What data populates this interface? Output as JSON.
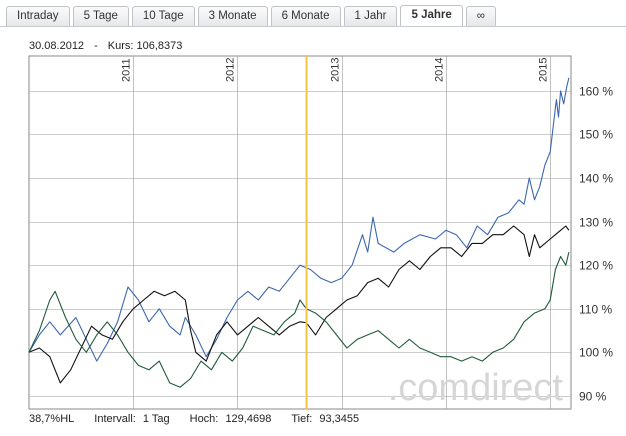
{
  "tabs": [
    {
      "label": "Intraday",
      "active": false
    },
    {
      "label": "5 Tage",
      "active": false
    },
    {
      "label": "10 Tage",
      "active": false
    },
    {
      "label": "3 Monate",
      "active": false
    },
    {
      "label": "6 Monate",
      "active": false
    },
    {
      "label": "1 Jahr",
      "active": false
    },
    {
      "label": "5 Jahre",
      "active": true
    },
    {
      "label": "∞",
      "active": false
    }
  ],
  "header": {
    "date": "30.08.2012",
    "separator": "-",
    "price_label": "Kurs:",
    "price_value": "106,8373"
  },
  "footer": {
    "range": "38,7%HL",
    "interval_label": "Intervall:",
    "interval_value": "1 Tag",
    "high_label": "Hoch:",
    "high_value": "129,4698",
    "low_label": "Tief:",
    "low_value": "93,3455"
  },
  "watermark": ".comdirect",
  "colors": {
    "blue": "#3a67b0",
    "black": "#111111",
    "green": "#1f5b3a",
    "cursor": "#f6c343",
    "grid": "#9a9a9a"
  },
  "chart_data": {
    "type": "line",
    "x_ticks": [
      "2011",
      "2012",
      "2013",
      "2014",
      "2015"
    ],
    "y_ticks": [
      90,
      100,
      110,
      120,
      130,
      140,
      150,
      160
    ],
    "y_tick_labels": [
      "90 %",
      "100 %",
      "110 %",
      "120 %",
      "130 %",
      "140 %",
      "150 %",
      "160 %"
    ],
    "ylim": [
      87,
      168
    ],
    "xlim": [
      2010.0,
      2015.2
    ],
    "cursor_x": 2012.66,
    "series": [
      {
        "color_key": "blue",
        "points": [
          [
            2010.0,
            100
          ],
          [
            2010.1,
            104
          ],
          [
            2010.2,
            107
          ],
          [
            2010.3,
            104
          ],
          [
            2010.45,
            108
          ],
          [
            2010.55,
            103
          ],
          [
            2010.65,
            98
          ],
          [
            2010.75,
            102
          ],
          [
            2010.85,
            107
          ],
          [
            2010.95,
            115
          ],
          [
            2011.05,
            112
          ],
          [
            2011.15,
            107
          ],
          [
            2011.25,
            110
          ],
          [
            2011.35,
            106
          ],
          [
            2011.45,
            104
          ],
          [
            2011.5,
            108
          ],
          [
            2011.6,
            104
          ],
          [
            2011.7,
            99
          ],
          [
            2011.8,
            103
          ],
          [
            2011.9,
            108
          ],
          [
            2012.0,
            112
          ],
          [
            2012.1,
            114
          ],
          [
            2012.2,
            112
          ],
          [
            2012.3,
            115
          ],
          [
            2012.4,
            114
          ],
          [
            2012.5,
            117
          ],
          [
            2012.6,
            120
          ],
          [
            2012.7,
            119
          ],
          [
            2012.8,
            117
          ],
          [
            2012.9,
            116
          ],
          [
            2013.0,
            117
          ],
          [
            2013.1,
            120
          ],
          [
            2013.2,
            127
          ],
          [
            2013.25,
            123
          ],
          [
            2013.3,
            131
          ],
          [
            2013.35,
            125
          ],
          [
            2013.5,
            123
          ],
          [
            2013.6,
            125
          ],
          [
            2013.75,
            127
          ],
          [
            2013.9,
            126
          ],
          [
            2014.0,
            128
          ],
          [
            2014.1,
            127
          ],
          [
            2014.2,
            124
          ],
          [
            2014.3,
            129
          ],
          [
            2014.4,
            127
          ],
          [
            2014.5,
            131
          ],
          [
            2014.6,
            132
          ],
          [
            2014.7,
            135
          ],
          [
            2014.75,
            134
          ],
          [
            2014.8,
            140
          ],
          [
            2014.85,
            135
          ],
          [
            2014.9,
            138
          ],
          [
            2014.95,
            143
          ],
          [
            2015.0,
            146
          ],
          [
            2015.03,
            152
          ],
          [
            2015.06,
            158
          ],
          [
            2015.08,
            154
          ],
          [
            2015.1,
            160
          ],
          [
            2015.13,
            157
          ],
          [
            2015.16,
            161
          ],
          [
            2015.18,
            163
          ]
        ]
      },
      {
        "color_key": "black",
        "points": [
          [
            2010.0,
            100
          ],
          [
            2010.1,
            101
          ],
          [
            2010.2,
            99
          ],
          [
            2010.3,
            93
          ],
          [
            2010.4,
            96
          ],
          [
            2010.5,
            101
          ],
          [
            2010.6,
            106
          ],
          [
            2010.7,
            104
          ],
          [
            2010.8,
            103
          ],
          [
            2010.9,
            107
          ],
          [
            2011.0,
            110
          ],
          [
            2011.1,
            112
          ],
          [
            2011.2,
            114
          ],
          [
            2011.3,
            113
          ],
          [
            2011.4,
            114
          ],
          [
            2011.5,
            112
          ],
          [
            2011.55,
            105
          ],
          [
            2011.6,
            100
          ],
          [
            2011.7,
            98
          ],
          [
            2011.8,
            104
          ],
          [
            2011.9,
            107
          ],
          [
            2012.0,
            104
          ],
          [
            2012.1,
            106
          ],
          [
            2012.2,
            108
          ],
          [
            2012.3,
            106
          ],
          [
            2012.4,
            104
          ],
          [
            2012.5,
            106
          ],
          [
            2012.6,
            107
          ],
          [
            2012.66,
            106.8
          ],
          [
            2012.75,
            104
          ],
          [
            2012.85,
            108
          ],
          [
            2012.95,
            110
          ],
          [
            2013.05,
            112
          ],
          [
            2013.15,
            113
          ],
          [
            2013.25,
            116
          ],
          [
            2013.35,
            117
          ],
          [
            2013.45,
            115
          ],
          [
            2013.55,
            119
          ],
          [
            2013.65,
            121
          ],
          [
            2013.75,
            119
          ],
          [
            2013.85,
            122
          ],
          [
            2013.95,
            124
          ],
          [
            2014.05,
            124
          ],
          [
            2014.15,
            122
          ],
          [
            2014.25,
            125
          ],
          [
            2014.35,
            125
          ],
          [
            2014.45,
            127
          ],
          [
            2014.55,
            127
          ],
          [
            2014.65,
            129
          ],
          [
            2014.75,
            127
          ],
          [
            2014.8,
            122
          ],
          [
            2014.85,
            127
          ],
          [
            2014.9,
            124
          ],
          [
            2015.0,
            126
          ],
          [
            2015.05,
            127
          ],
          [
            2015.1,
            128
          ],
          [
            2015.15,
            129
          ],
          [
            2015.18,
            128
          ]
        ]
      },
      {
        "color_key": "green",
        "points": [
          [
            2010.0,
            100
          ],
          [
            2010.1,
            105
          ],
          [
            2010.2,
            112
          ],
          [
            2010.25,
            114
          ],
          [
            2010.35,
            108
          ],
          [
            2010.45,
            103
          ],
          [
            2010.55,
            100
          ],
          [
            2010.65,
            104
          ],
          [
            2010.75,
            107
          ],
          [
            2010.85,
            104
          ],
          [
            2010.95,
            100
          ],
          [
            2011.05,
            97
          ],
          [
            2011.15,
            96
          ],
          [
            2011.25,
            98
          ],
          [
            2011.35,
            93
          ],
          [
            2011.45,
            92
          ],
          [
            2011.55,
            94
          ],
          [
            2011.65,
            98
          ],
          [
            2011.75,
            96
          ],
          [
            2011.85,
            100
          ],
          [
            2011.95,
            98
          ],
          [
            2012.05,
            101
          ],
          [
            2012.15,
            106
          ],
          [
            2012.25,
            105
          ],
          [
            2012.35,
            104
          ],
          [
            2012.45,
            107
          ],
          [
            2012.55,
            109
          ],
          [
            2012.6,
            112
          ],
          [
            2012.66,
            110
          ],
          [
            2012.75,
            109
          ],
          [
            2012.85,
            107
          ],
          [
            2012.95,
            104
          ],
          [
            2013.05,
            101
          ],
          [
            2013.15,
            103
          ],
          [
            2013.25,
            104
          ],
          [
            2013.35,
            105
          ],
          [
            2013.45,
            103
          ],
          [
            2013.55,
            101
          ],
          [
            2013.65,
            103
          ],
          [
            2013.75,
            101
          ],
          [
            2013.85,
            100
          ],
          [
            2013.95,
            99
          ],
          [
            2014.05,
            99
          ],
          [
            2014.15,
            98
          ],
          [
            2014.25,
            99
          ],
          [
            2014.35,
            98
          ],
          [
            2014.45,
            100
          ],
          [
            2014.55,
            101
          ],
          [
            2014.65,
            103
          ],
          [
            2014.75,
            107
          ],
          [
            2014.85,
            109
          ],
          [
            2014.95,
            110
          ],
          [
            2015.0,
            112
          ],
          [
            2015.05,
            119
          ],
          [
            2015.1,
            122
          ],
          [
            2015.15,
            120
          ],
          [
            2015.18,
            123
          ]
        ]
      }
    ]
  }
}
